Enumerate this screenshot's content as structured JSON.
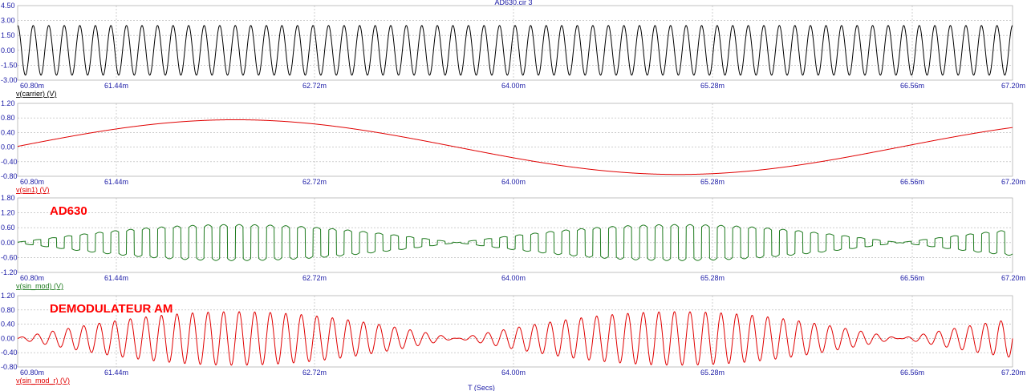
{
  "window": {
    "title": "AD630.cir 3",
    "x_axis_title": "T (Secs)"
  },
  "chart_data": [
    {
      "type": "line",
      "trace_label": "v(carrier) (V)",
      "color": "#000000",
      "x_ticks": [
        "60.80m",
        "61.44m",
        "62.72m",
        "64.00m",
        "65.28m",
        "66.56m",
        "67.20m"
      ],
      "x_range": [
        60.8,
        67.2
      ],
      "x_unit": "ms",
      "y_ticks": [
        "4.50",
        "3.00",
        "1.50",
        "0.00",
        "-1.50",
        "-3.00"
      ],
      "ylim": [
        -3.0,
        4.5
      ],
      "grid": true,
      "series": [
        {
          "shape": "sine",
          "amplitude": 2.5,
          "cycles_in_window": 64,
          "offset": 0.0
        }
      ]
    },
    {
      "type": "line",
      "trace_label": "v(sin1) (V)",
      "color": "#e00000",
      "x_ticks": [
        "60.80m",
        "61.44m",
        "62.72m",
        "64.00m",
        "65.28m",
        "66.56m",
        "67.20m"
      ],
      "x_range": [
        60.8,
        67.2
      ],
      "x_unit": "ms",
      "y_ticks": [
        "1.20",
        "0.80",
        "0.40",
        "0.00",
        "-0.40",
        "-0.80"
      ],
      "ylim": [
        -0.8,
        1.2
      ],
      "grid": true,
      "series": [
        {
          "shape": "sine",
          "amplitude": 0.75,
          "period_ms": 5.7,
          "peak_at_ms": 62.2
        }
      ]
    },
    {
      "type": "line",
      "trace_label": "v(sin_mod) (V)",
      "color": "#1e7a1e",
      "annotation": "AD630",
      "x_ticks": [
        "60.80m",
        "61.44m",
        "62.72m",
        "64.00m",
        "65.28m",
        "66.56m",
        "67.20m"
      ],
      "x_range": [
        60.8,
        67.2
      ],
      "x_unit": "ms",
      "y_ticks": [
        "1.80",
        "1.20",
        "0.60",
        "0.00",
        "-0.60",
        "-1.20"
      ],
      "ylim": [
        -1.2,
        1.8
      ],
      "grid": true,
      "series": [
        {
          "shape": "chopped",
          "envelope_amplitude": 0.75,
          "cycles_in_window": 64,
          "envelope_period_ms": 2.85
        }
      ]
    },
    {
      "type": "line",
      "trace_label": "v(sin_mod_r) (V)",
      "color": "#e00000",
      "annotation": "DEMODULATEUR AM",
      "x_ticks": [
        "60.80m",
        "61.44m",
        "62.72m",
        "64.00m",
        "65.28m",
        "66.56m",
        "67.20m"
      ],
      "x_range": [
        60.8,
        67.2
      ],
      "x_unit": "ms",
      "y_ticks": [
        "1.20",
        "0.80",
        "0.40",
        "0.00",
        "-0.40",
        "-0.80"
      ],
      "ylim": [
        -0.8,
        1.2
      ],
      "grid": true,
      "series": [
        {
          "shape": "am",
          "envelope_amplitude": 0.75,
          "cycles_in_window": 64,
          "envelope_period_ms": 2.85
        }
      ]
    }
  ]
}
